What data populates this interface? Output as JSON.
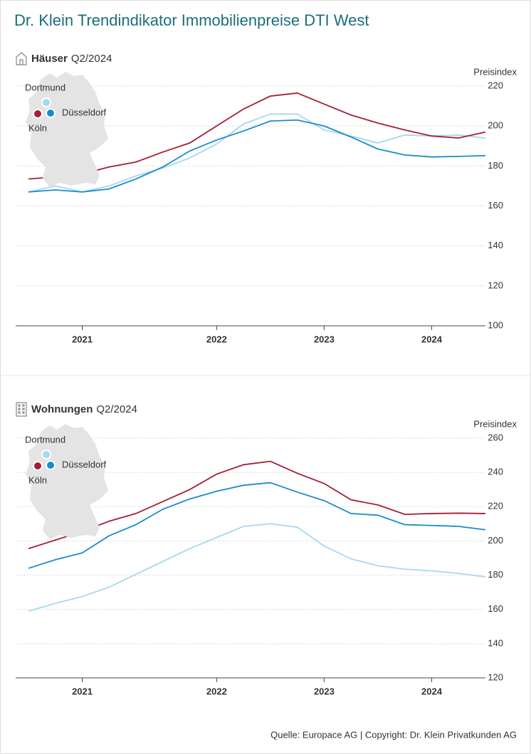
{
  "title": "Dr. Klein Trendindikator Immobilienpreise DTI West",
  "source": "Quelle: Europace AG | Copyright: Dr. Klein Privatkunden AG",
  "chart_data": [
    {
      "type": "line",
      "title": "Häuser",
      "subtitle": "Q2/2024",
      "y_label": "Preisindex",
      "categories": [
        null,
        null,
        "2021",
        null,
        null,
        null,
        null,
        "2022",
        null,
        null,
        null,
        "2023",
        null,
        null,
        null,
        "2024",
        null,
        null
      ],
      "series": [
        {
          "name": "Dortmund",
          "color": "#a6d8ef",
          "values": [
            167,
            170,
            167,
            170,
            175,
            179,
            184,
            191,
            201,
            206,
            206,
            198,
            195,
            191.5,
            195.5,
            195,
            195.5,
            194
          ]
        },
        {
          "name": "Köln",
          "color": "#a51e36",
          "values": [
            173.5,
            174.5,
            176,
            179.5,
            182,
            187,
            191.5,
            200,
            208.5,
            215,
            216.5,
            211,
            205.5,
            201.5,
            198,
            195,
            194,
            197
          ]
        },
        {
          "name": "Düsseldorf",
          "color": "#1a8ccc",
          "values": [
            167,
            168,
            167,
            168.5,
            173.5,
            179.5,
            187.5,
            193,
            197.5,
            202.5,
            203,
            200,
            194.5,
            188.5,
            185.5,
            184.5,
            184.8,
            185.2
          ]
        }
      ],
      "ylim": [
        100,
        220
      ],
      "yticks": [
        100,
        120,
        140,
        160,
        180,
        200,
        220
      ],
      "grid": true
    },
    {
      "type": "line",
      "title": "Wohnungen",
      "subtitle": "Q2/2024",
      "y_label": "Preisindex",
      "categories": [
        null,
        null,
        "2021",
        null,
        null,
        null,
        null,
        "2022",
        null,
        null,
        null,
        "2023",
        null,
        null,
        null,
        "2024",
        null,
        null
      ],
      "series": [
        {
          "name": "Dortmund",
          "color": "#a6d8ef",
          "values": [
            159,
            163.5,
            167.5,
            173,
            180.5,
            188,
            195.5,
            202,
            208.5,
            210,
            208,
            197,
            189.5,
            185.5,
            183.5,
            182.5,
            181,
            179
          ]
        },
        {
          "name": "Köln",
          "color": "#a51e36",
          "values": [
            195.5,
            200.5,
            205.5,
            211.5,
            216,
            223,
            230,
            239,
            244.5,
            246.5,
            239.5,
            233.5,
            224,
            221,
            215.5,
            216,
            216.2,
            216
          ]
        },
        {
          "name": "Düsseldorf",
          "color": "#1a8ccc",
          "values": [
            184,
            189,
            193,
            203,
            209.5,
            218.5,
            224.5,
            229,
            232.5,
            234,
            228.5,
            223.5,
            216,
            215,
            209.5,
            209,
            208.5,
            206.5
          ]
        }
      ],
      "ylim": [
        120,
        260
      ],
      "yticks": [
        120,
        140,
        160,
        180,
        200,
        220,
        240,
        260
      ],
      "grid": true
    }
  ]
}
